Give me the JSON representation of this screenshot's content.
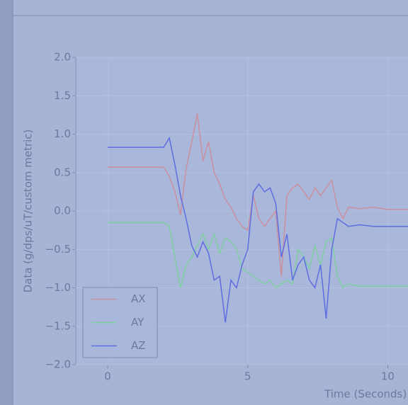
{
  "chart_data": {
    "type": "line",
    "xlabel": "Time (Seconds)",
    "ylabel": "Data (g/dps/uT/custom metric)",
    "x": [
      0,
      2.0,
      2.2,
      2.4,
      2.6,
      2.8,
      3.0,
      3.2,
      3.4,
      3.6,
      3.8,
      4.0,
      4.2,
      4.4,
      4.6,
      4.8,
      5.0,
      5.2,
      5.4,
      5.6,
      5.8,
      6.0,
      6.2,
      6.4,
      6.6,
      6.8,
      7.0,
      7.2,
      7.4,
      7.6,
      7.8,
      8.0,
      8.2,
      8.4,
      8.6,
      9.0,
      9.5,
      10.0,
      10.8
    ],
    "series": [
      {
        "name": "AX",
        "color": "#c9909f",
        "values": [
          0.57,
          0.57,
          0.45,
          0.25,
          -0.05,
          0.55,
          0.9,
          1.27,
          0.65,
          0.9,
          0.5,
          0.35,
          0.15,
          0.05,
          -0.1,
          -0.2,
          -0.25,
          0.2,
          -0.1,
          -0.2,
          -0.1,
          0.0,
          -0.85,
          0.2,
          0.3,
          0.35,
          0.25,
          0.15,
          0.3,
          0.2,
          0.3,
          0.4,
          0.05,
          -0.1,
          0.05,
          0.03,
          0.05,
          0.02,
          0.02
        ]
      },
      {
        "name": "AY",
        "color": "#7fcfa2",
        "values": [
          -0.15,
          -0.15,
          -0.2,
          -0.6,
          -1.0,
          -0.7,
          -0.6,
          -0.45,
          -0.3,
          -0.5,
          -0.3,
          -0.55,
          -0.35,
          -0.4,
          -0.5,
          -0.75,
          -0.8,
          -0.85,
          -0.9,
          -0.95,
          -0.9,
          -1.0,
          -0.95,
          -0.9,
          -0.95,
          -0.5,
          -0.6,
          -0.75,
          -0.45,
          -0.7,
          -0.4,
          -0.35,
          -0.85,
          -1.0,
          -0.95,
          -0.98,
          -0.98,
          -0.98,
          -0.98
        ]
      },
      {
        "name": "AZ",
        "color": "#5e6ee0",
        "values": [
          0.83,
          0.83,
          0.95,
          0.6,
          0.2,
          -0.1,
          -0.45,
          -0.6,
          -0.4,
          -0.55,
          -0.9,
          -0.85,
          -1.45,
          -0.9,
          -1.0,
          -0.7,
          -0.5,
          0.25,
          0.35,
          0.25,
          0.3,
          0.1,
          -0.6,
          -0.3,
          -0.9,
          -0.7,
          -0.6,
          -0.9,
          -1.0,
          -0.7,
          -1.4,
          -0.5,
          -0.1,
          -0.15,
          -0.2,
          -0.18,
          -0.2,
          -0.2,
          -0.2
        ]
      }
    ],
    "xlim": [
      -1.14,
      10.9
    ],
    "xticks": [
      0,
      5,
      10
    ],
    "ylim": [
      -2.0,
      2.0
    ],
    "yticks": [
      {
        "value": -2.0,
        "label": "−2.0"
      },
      {
        "value": -1.5,
        "label": "−1.5"
      },
      {
        "value": -1.0,
        "label": "−1.0"
      },
      {
        "value": -0.5,
        "label": "−0.5"
      },
      {
        "value": 0.0,
        "label": "0.0"
      },
      {
        "value": 0.5,
        "label": "0.5"
      },
      {
        "value": 1.0,
        "label": "1.0"
      },
      {
        "value": 1.5,
        "label": "1.5"
      },
      {
        "value": 2.0,
        "label": "2.0"
      }
    ],
    "grid": true,
    "legend": "lower left"
  }
}
